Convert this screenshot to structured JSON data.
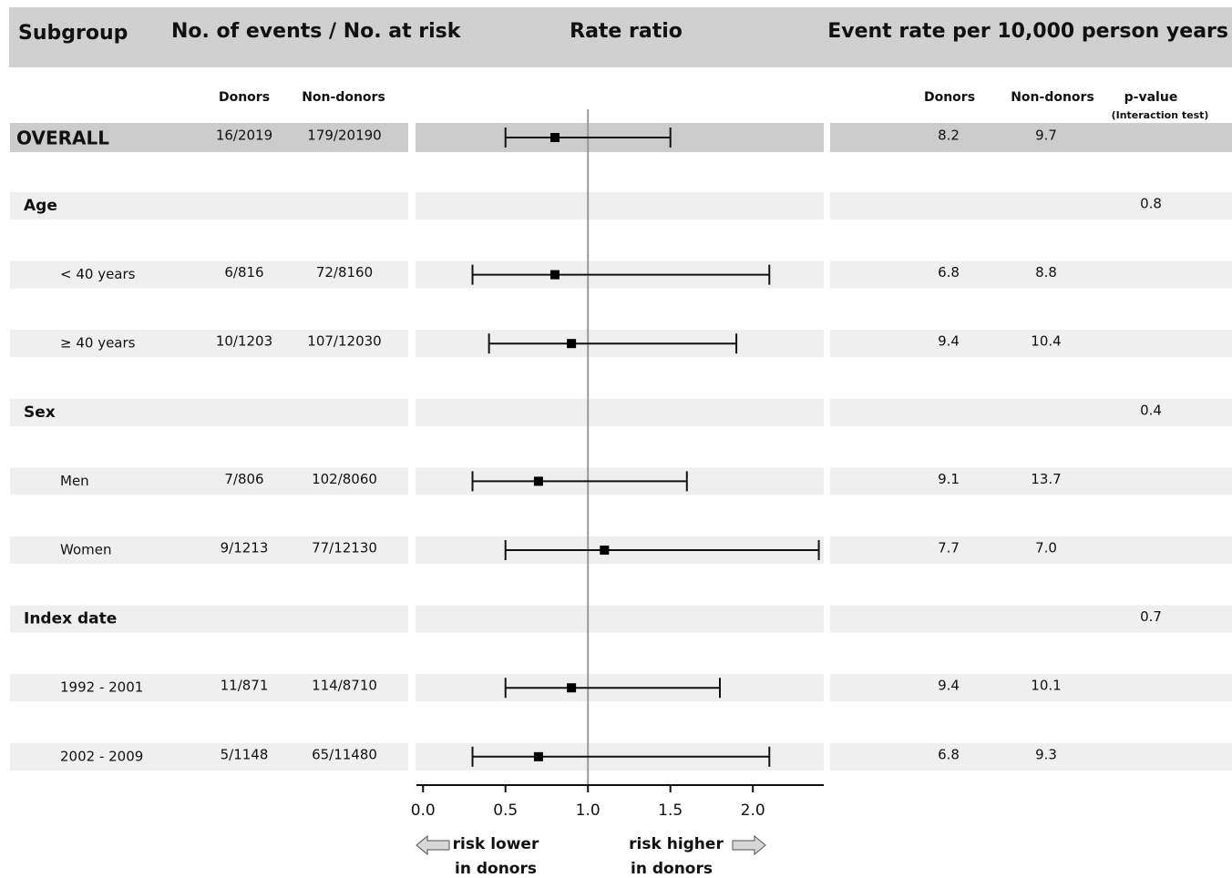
{
  "header": {
    "subgroup": "Subgroup",
    "counts": "No. of events / No. at risk",
    "rate_ratio": "Rate ratio",
    "event_rate": "Event rate per 10,000 person years"
  },
  "subheader": {
    "donors": "Donors",
    "non_donors": "Non-donors",
    "rate_donors": "Donors",
    "rate_non_donors": "Non-donors",
    "p_value": "p-value",
    "p_note": "(Interaction test)"
  },
  "chart_data": {
    "type": "forest",
    "xlim": [
      -0.04,
      2.43
    ],
    "xticks": [
      {
        "value": 0,
        "label": "0.0"
      },
      0.5,
      {
        "value": 1,
        "label": "1.0"
      },
      1.5,
      {
        "value": 2,
        "label": "2.0"
      }
    ],
    "ref_line": 1,
    "overall": {
      "label": "OVERALL",
      "donors": "16/2019",
      "non_donors": "179/20190",
      "rr": 0.8,
      "lo": 0.5,
      "hi": 1.5,
      "rate_donors": "8.2",
      "rate_non_donors": "9.7"
    },
    "rows": [
      {
        "label": "Age",
        "p_value": "0.8"
      },
      {
        "label": "< 40 years",
        "donors": "6/816",
        "non_donors": "72/8160",
        "rr": 0.8,
        "lo": 0.3,
        "hi": 2.1,
        "rate_donors": "6.8",
        "rate_non_donors": "8.8"
      },
      {
        "label": "≥ 40 years",
        "donors": "10/1203",
        "non_donors": "107/12030",
        "rr": 0.9,
        "lo": 0.4,
        "hi": 1.9,
        "rate_donors": "9.4",
        "rate_non_donors": "10.4"
      },
      {
        "label": "Sex",
        "p_value": "0.4"
      },
      {
        "label": "Men",
        "donors": "7/806",
        "non_donors": "102/8060",
        "rr": 0.7,
        "lo": 0.3,
        "hi": 1.6,
        "rate_donors": "9.1",
        "rate_non_donors": "13.7"
      },
      {
        "label": "Women",
        "donors": "9/1213",
        "non_donors": "77/12130",
        "rr": 1.1,
        "lo": 0.5,
        "hi": 2.4,
        "rate_donors": "7.7",
        "rate_non_donors": "7.0"
      },
      {
        "label": "Index date",
        "p_value": "0.7"
      },
      {
        "label": "1992 - 2001",
        "donors": "11/871",
        "non_donors": "114/8710",
        "rr": 0.9,
        "lo": 0.5,
        "hi": 1.8,
        "rate_donors": "9.4",
        "rate_non_donors": "10.1"
      },
      {
        "label": "2002 - 2009",
        "donors": "5/1148",
        "non_donors": "65/11480",
        "rr": 0.7,
        "lo": 0.3,
        "hi": 2.1,
        "rate_donors": "6.8",
        "rate_non_donors": "9.3"
      }
    ],
    "annotations": {
      "left": [
        "risk lower",
        "in donors"
      ],
      "right": [
        "risk higher",
        "in donors"
      ]
    }
  }
}
